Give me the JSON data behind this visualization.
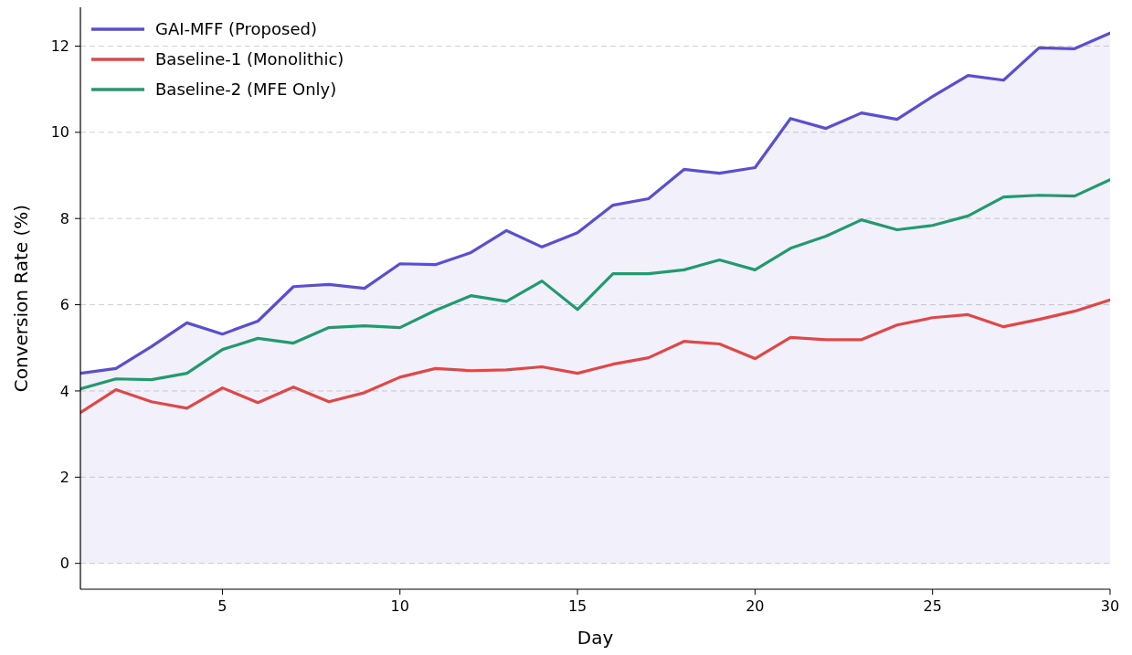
{
  "chart_data": {
    "type": "line",
    "xlabel": "Day",
    "ylabel": "Conversion Rate (%)",
    "x": [
      1,
      2,
      3,
      4,
      5,
      6,
      7,
      8,
      9,
      10,
      11,
      12,
      13,
      14,
      15,
      16,
      17,
      18,
      19,
      20,
      21,
      22,
      23,
      24,
      25,
      26,
      27,
      28,
      29,
      30
    ],
    "series": [
      {
        "name": "GAI-MFF (Proposed)",
        "type": "area",
        "color": "#5a4fcf",
        "values": [
          4.41,
          4.52,
          5.03,
          5.58,
          5.32,
          5.62,
          6.42,
          6.47,
          6.38,
          6.95,
          6.93,
          7.21,
          7.72,
          7.34,
          7.67,
          8.31,
          8.46,
          9.14,
          9.05,
          9.18,
          10.32,
          10.09,
          10.45,
          10.3,
          10.83,
          11.32,
          11.21,
          11.96,
          11.94,
          12.3
        ]
      },
      {
        "name": "Baseline-1 (Monolithic)",
        "color": "#e04848",
        "values": [
          3.5,
          4.03,
          3.75,
          3.6,
          4.07,
          3.73,
          4.09,
          3.75,
          3.96,
          4.32,
          4.52,
          4.47,
          4.49,
          4.56,
          4.41,
          4.62,
          4.77,
          5.15,
          5.09,
          4.75,
          5.24,
          5.19,
          5.19,
          5.53,
          5.7,
          5.77,
          5.49,
          5.66,
          5.85,
          6.11
        ]
      },
      {
        "name": "Baseline-2 (MFE Only)",
        "color": "#229a6e",
        "values": [
          4.05,
          4.28,
          4.26,
          4.41,
          4.96,
          5.22,
          5.11,
          5.47,
          5.51,
          5.47,
          5.87,
          6.21,
          6.08,
          6.55,
          5.89,
          6.72,
          6.72,
          6.81,
          7.04,
          6.81,
          7.31,
          7.59,
          7.97,
          7.74,
          7.84,
          8.06,
          8.5,
          8.54,
          8.52,
          8.9
        ]
      }
    ],
    "xlim": [
      1,
      30
    ],
    "xticks": [
      5,
      10,
      15,
      20,
      25,
      30
    ],
    "ylim": [
      -0.6,
      12.9
    ],
    "yticks": [
      0,
      2,
      4,
      6,
      8,
      10,
      12
    ],
    "grid": "y",
    "legend": "top left",
    "marker": "none",
    "line_style": "solid"
  }
}
